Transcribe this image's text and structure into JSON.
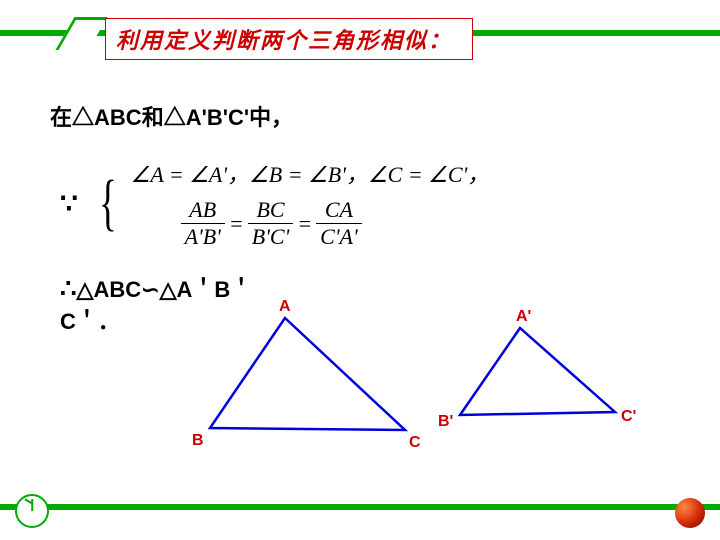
{
  "title": "利用定义判断两个三角形相似：",
  "line1_prefix": "在",
  "line1_t1": "△ABC",
  "line1_mid": "和",
  "line1_t2": "△A'B'C'",
  "line1_suffix": "中，",
  "because_symbol": "∵",
  "therefore_symbol": "∴",
  "cond_angles": "∠A = ∠A'，∠B = ∠B'，∠C = ∠C'，",
  "frac1_top": "AB",
  "frac1_bot": "A'B'",
  "frac2_top": "BC",
  "frac2_bot": "B'C'",
  "frac3_top": "CA",
  "frac3_bot": "C'A'",
  "conclusion_t1": "△ABC",
  "similar_symbol": "∽",
  "conclusion_t2": "△A＇B＇",
  "conclusion_t2b": "C＇",
  "period": "．",
  "labels": {
    "A": "A",
    "B": "B",
    "C": "C",
    "Ap": "A'",
    "Bp": "B'",
    "Cp": "C'"
  },
  "colors": {
    "accent_green": "#00aa00",
    "accent_red": "#cc0000",
    "triangle_stroke": "#0000dd",
    "text": "#000000"
  },
  "triangles": {
    "large": {
      "A": [
        85,
        8
      ],
      "B": [
        10,
        118
      ],
      "C": [
        205,
        120
      ]
    },
    "small": {
      "Ap": [
        320,
        18
      ],
      "Bp": [
        260,
        105
      ],
      "Cp": [
        415,
        102
      ]
    }
  }
}
